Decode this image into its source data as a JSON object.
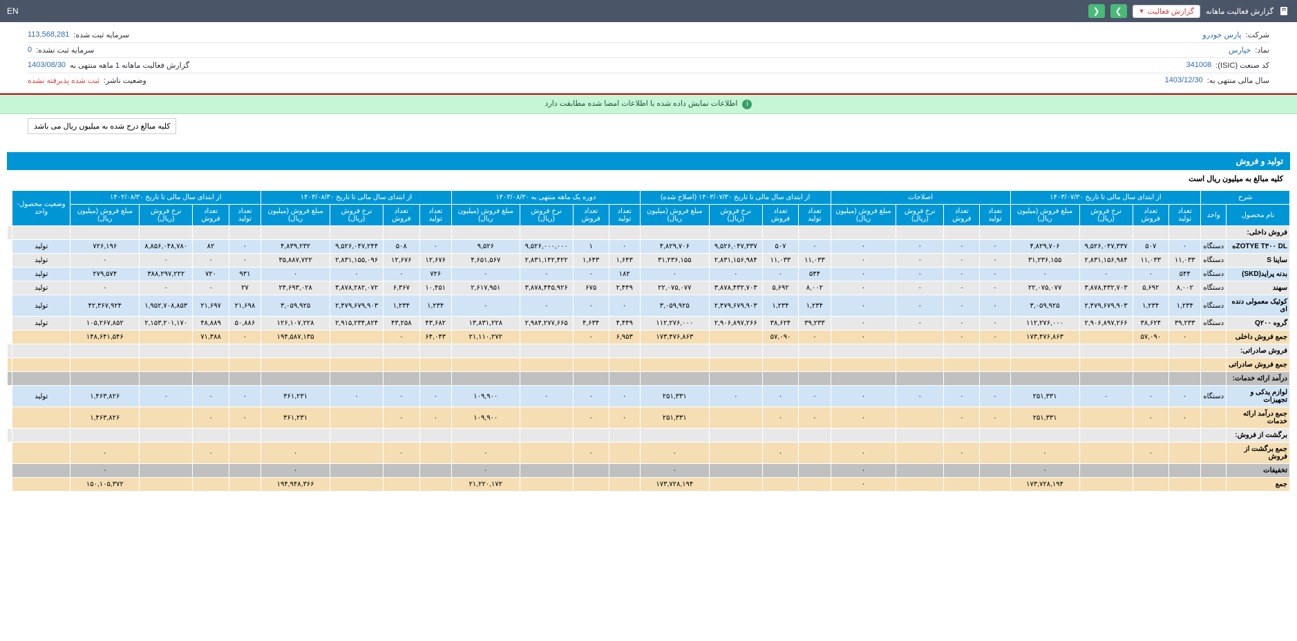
{
  "topbar": {
    "title": "گزارش فعالیت ماهانه",
    "activity_btn": "گزارش فعالیت",
    "lang": "EN"
  },
  "info": {
    "company_label": "شرکت:",
    "company_value": "پارس خودرو",
    "symbol_label": "نماد:",
    "symbol_value": "خپارس",
    "isic_label": "کد صنعت (ISIC):",
    "isic_value": "341008",
    "year_end_label": "سال مالی منتهی به:",
    "year_end_value": "1403/12/30",
    "reg_cap_label": "سرمایه ثبت شده:",
    "reg_cap_value": "113,568,281",
    "unreg_cap_label": "سرمایه ثبت نشده:",
    "unreg_cap_value": "0",
    "report_label": "گزارش فعالیت ماهانه 1 ماهه منتهی به",
    "report_value": "1403/08/30",
    "status_label": "وضعیت ناشر:",
    "status_value": "ثبت شده پذیرفته نشده"
  },
  "alert": "اطلاعات نمایش داده شده با اطلاعات امضا شده مطابقت دارد",
  "note": "کلیه مبالغ درج شده به میلیون ریال می باشد",
  "section": {
    "title": "تولید و فروش",
    "sub": "کلیه مبالغ به میلیون ریال است"
  },
  "headers": {
    "g1": "شرح",
    "g2": "از ابتدای سال مالی تا تاریخ ۱۴۰۳/۰۷/۳۰",
    "g3": "اصلاحات",
    "g4": "از ابتدای سال مالی تا تاریخ ۱۴۰۳/۰۷/۳۰ (اصلاح شده)",
    "g5": "دوره یک ماهه منتهی به ۱۴۰۳/۰۸/۳۰",
    "g6": "از ابتدای سال مالی تا تاریخ ۱۴۰۳/۰۸/۳۰",
    "g7": "از ابتدای سال مالی تا تاریخ ۱۴۰۲/۰۸/۳۰",
    "g8": "وضعیت محصول-واحد",
    "product": "نام محصول",
    "unit": "واحد",
    "prod_qty": "تعداد تولید",
    "sale_qty": "تعداد فروش",
    "rate": "نرخ فروش (ریال)",
    "amount": "مبلغ فروش (میلیون ریال)"
  },
  "rows": [
    {
      "cls": "row-gray",
      "cells": [
        "فروش داخلی:",
        "",
        "",
        "",
        "",
        "",
        "",
        "",
        "",
        "",
        "",
        "",
        "",
        "",
        "",
        "",
        "",
        "",
        "",
        "",
        "",
        "",
        "",
        "",
        "",
        "",
        "",
        ""
      ]
    },
    {
      "cls": "row-blue",
      "cells": [
        "ZOTYE T۳۰۰ DLه",
        "دستگاه",
        "۰",
        "۵۰۷",
        "۹,۵۲۶,۰۴۷,۳۳۷",
        "۴,۸۲۹,۷۰۶",
        "۰",
        "۰",
        "۰",
        "۰",
        "۰",
        "۵۰۷",
        "۹,۵۲۶,۰۴۷,۳۳۷",
        "۴,۸۲۹,۷۰۶",
        "۰",
        "۱",
        "۹,۵۲۶,۰۰۰,۰۰۰",
        "۹,۵۲۶",
        "۰",
        "۵۰۸",
        "۹,۵۲۶,۰۴۷,۲۴۴",
        "۴,۸۳۹,۲۳۲",
        "۰",
        "۸۲",
        "۸,۸۵۶,۰۴۸,۷۸۰",
        "۷۲۶,۱۹۶",
        "تولید"
      ]
    },
    {
      "cls": "row-gray",
      "cells": [
        "ساینا S",
        "دستگاه",
        "۱۱,۰۳۳",
        "۱۱,۰۳۳",
        "۲,۸۳۱,۱۵۶,۹۸۴",
        "۳۱,۲۳۶,۱۵۵",
        "۰",
        "۰",
        "۰",
        "۰",
        "۱۱,۰۳۳",
        "۱۱,۰۳۳",
        "۲,۸۳۱,۱۵۶,۹۸۴",
        "۳۱,۲۳۶,۱۵۵",
        "۱,۶۴۳",
        "۱,۶۴۳",
        "۲,۸۳۱,۱۴۲,۴۲۲",
        "۴,۶۵۱,۵۶۷",
        "۱۲,۶۷۶",
        "۱۲,۶۷۶",
        "۲,۸۳۱,۱۵۵,۰۹۶",
        "۳۵,۸۸۷,۷۲۲",
        "۰",
        "۰",
        "۰",
        "۰",
        "تولید"
      ]
    },
    {
      "cls": "row-blue",
      "cells": [
        "بدنه پراید(SKD)",
        "دستگاه",
        "۵۴۴",
        "۰",
        "۰",
        "۰",
        "۰",
        "۰",
        "۰",
        "۰",
        "۵۴۴",
        "۰",
        "۰",
        "۰",
        "۱۸۲",
        "۰",
        "۰",
        "۰",
        "۷۲۶",
        "۰",
        "۰",
        "۰",
        "۹۳۱",
        "۷۲۰",
        "۳۸۸,۲۹۷,۲۲۲",
        "۲۷۹,۵۷۴",
        "تولید"
      ]
    },
    {
      "cls": "row-gray",
      "cells": [
        "سهند",
        "دستگاه",
        "۸,۰۰۲",
        "۵,۶۹۲",
        "۳,۸۷۸,۴۳۲,۷۰۳",
        "۲۲,۰۷۵,۰۷۷",
        "۰",
        "۰",
        "۰",
        "۰",
        "۸,۰۰۲",
        "۵,۶۹۲",
        "۳,۸۷۸,۴۳۲,۷۰۳",
        "۲۲,۰۷۵,۰۷۷",
        "۲,۴۴۹",
        "۶۷۵",
        "۳,۸۷۸,۴۴۵,۹۲۶",
        "۲,۶۱۷,۹۵۱",
        "۱۰,۴۵۱",
        "۶,۳۶۷",
        "۳,۸۷۸,۲۸۲,۰۷۲",
        "۲۴,۶۹۳,۰۲۸",
        "۲۷",
        "۰",
        "۰",
        "۰",
        "تولید"
      ]
    },
    {
      "cls": "row-blue",
      "cells": [
        "کوئیک معمولی دنده ای",
        "دستگاه",
        "۱,۲۳۴",
        "۱,۲۳۴",
        "۲,۴۷۹,۶۷۹,۹۰۳",
        "۳,۰۵۹,۹۲۵",
        "۰",
        "۰",
        "۰",
        "۰",
        "۱,۲۳۴",
        "۱,۲۳۴",
        "۲,۴۷۹,۶۷۹,۹۰۳",
        "۳,۰۵۹,۹۲۵",
        "۰",
        "۰",
        "۰",
        "۰",
        "۱,۲۳۴",
        "۱,۲۳۴",
        "۲,۴۷۹,۶۷۹,۹۰۳",
        "۳,۰۵۹,۹۲۵",
        "۲۱,۶۹۸",
        "۲۱,۶۹۷",
        "۱,۹۵۲,۷۰۸,۸۵۳",
        "۴۲,۳۶۷,۹۲۴",
        "تولید"
      ]
    },
    {
      "cls": "row-gray",
      "cells": [
        "گروه Q۲۰۰",
        "دستگاه",
        "۳۹,۲۳۳",
        "۳۸,۶۲۴",
        "۲,۹۰۶,۸۹۷,۲۶۶",
        "۱۱۲,۲۷۶,۰۰۰",
        "۰",
        "۰",
        "۰",
        "۰",
        "۳۹,۲۳۳",
        "۳۸,۶۲۴",
        "۲,۹۰۶,۸۹۷,۲۶۶",
        "۱۱۲,۲۷۶,۰۰۰",
        "۴,۴۴۹",
        "۴,۶۳۴",
        "۲,۹۸۴,۲۷۷,۶۶۵",
        "۱۳,۸۳۱,۲۲۸",
        "۴۳,۶۸۲",
        "۴۳,۲۵۸",
        "۲,۹۱۵,۲۳۴,۸۲۴",
        "۱۲۶,۱۰۷,۲۲۸",
        "۵۰,۸۸۶",
        "۴۸,۸۸۹",
        "۲,۱۵۳,۲۰۱,۱۷۰",
        "۱۰۵,۲۶۷,۸۵۲",
        "تولید"
      ]
    },
    {
      "cls": "row-sand",
      "cells": [
        "جمع فروش داخلی",
        "",
        "۰",
        "۵۷,۰۹۰",
        "",
        "۱۷۳,۴۷۶,۸۶۳",
        "۰",
        "۰",
        "",
        "۰",
        "۰",
        "۵۷,۰۹۰",
        "",
        "۱۷۳,۴۷۶,۸۶۳",
        "۶,۹۵۳",
        "۰",
        "",
        "۲۱,۱۱۰,۲۷۲",
        "۶۴,۰۴۳",
        "۰",
        "",
        "۱۹۴,۵۸۷,۱۳۵",
        "۰",
        "۷۱,۳۸۸",
        "",
        "۱۴۸,۶۴۱,۵۴۶",
        ""
      ]
    },
    {
      "cls": "row-gray",
      "cells": [
        "فروش صادراتی:",
        "",
        "",
        "",
        "",
        "",
        "",
        "",
        "",
        "",
        "",
        "",
        "",
        "",
        "",
        "",
        "",
        "",
        "",
        "",
        "",
        "",
        "",
        "",
        "",
        "",
        "",
        ""
      ]
    },
    {
      "cls": "row-sand",
      "cells": [
        "جمع فروش صادراتی",
        "",
        "",
        "",
        "",
        "",
        "",
        "",
        "",
        "",
        "",
        "",
        "",
        "",
        "",
        "",
        "",
        "",
        "",
        "",
        "",
        "",
        "",
        "",
        "",
        "",
        "",
        ""
      ]
    },
    {
      "cls": "row-darkgray",
      "cells": [
        "درآمد ارائه خدمات:",
        "",
        "",
        "",
        "",
        "",
        "",
        "",
        "",
        "",
        "",
        "",
        "",
        "",
        "",
        "",
        "",
        "",
        "",
        "",
        "",
        "",
        "",
        "",
        "",
        "",
        "",
        ""
      ]
    },
    {
      "cls": "row-blue",
      "cells": [
        "لوازم یدکی و تجهیزات",
        "دستگاه",
        "۰",
        "۰",
        "۰",
        "۲۵۱,۳۳۱",
        "۰",
        "۰",
        "۰",
        "۰",
        "۰",
        "۰",
        "۰",
        "۲۵۱,۳۳۱",
        "۰",
        "۰",
        "۰",
        "۱۰۹,۹۰۰",
        "۰",
        "۰",
        "۰",
        "۳۶۱,۲۳۱",
        "۰",
        "۰",
        "۰",
        "۱,۴۶۳,۸۲۶",
        "تولید"
      ]
    },
    {
      "cls": "row-sand",
      "cells": [
        "جمع درآمد ارائه خدمات",
        "",
        "۰",
        "۰",
        "",
        "۲۵۱,۳۳۱",
        "۰",
        "۰",
        "",
        "۰",
        "۰",
        "۰",
        "",
        "۲۵۱,۳۳۱",
        "۰",
        "۰",
        "",
        "۱۰۹,۹۰۰",
        "۰",
        "۰",
        "",
        "۳۶۱,۲۳۱",
        "۰",
        "۰",
        "",
        "۱,۴۶۳,۸۲۶",
        ""
      ]
    },
    {
      "cls": "row-gray",
      "cells": [
        "برگشت از فروش:",
        "",
        "",
        "",
        "",
        "",
        "",
        "",
        "",
        "",
        "",
        "",
        "",
        "",
        "",
        "",
        "",
        "",
        "",
        "",
        "",
        "",
        "",
        "",
        "",
        "",
        "",
        ""
      ]
    },
    {
      "cls": "row-sand",
      "cells": [
        "جمع برگشت از فروش",
        "",
        "",
        "۰",
        "",
        "۰",
        "",
        "۰",
        "",
        "۰",
        "",
        "۰",
        "",
        "۰",
        "",
        "۰",
        "",
        "۰",
        "",
        "۰",
        "",
        "۰",
        "",
        "۰",
        "",
        "۰",
        ""
      ]
    },
    {
      "cls": "row-darkgray",
      "cells": [
        "تخفیفات",
        "",
        "",
        "",
        "",
        "۰",
        "",
        "",
        "",
        "۰",
        "",
        "",
        "",
        "۰",
        "",
        "",
        "",
        "۰",
        "",
        "",
        "",
        "۰",
        "",
        "",
        "",
        "۰",
        ""
      ]
    },
    {
      "cls": "row-sand",
      "cells": [
        "جمع",
        "",
        "",
        "",
        "",
        "۱۷۳,۷۲۸,۱۹۴",
        "",
        "",
        "",
        "۰",
        "",
        "",
        "",
        "۱۷۳,۷۲۸,۱۹۴",
        "",
        "",
        "",
        "۲۱,۲۲۰,۱۷۲",
        "",
        "",
        "",
        "۱۹۴,۹۴۸,۳۶۶",
        "",
        "",
        "",
        "۱۵۰,۱۰۵,۳۷۲",
        ""
      ]
    }
  ]
}
